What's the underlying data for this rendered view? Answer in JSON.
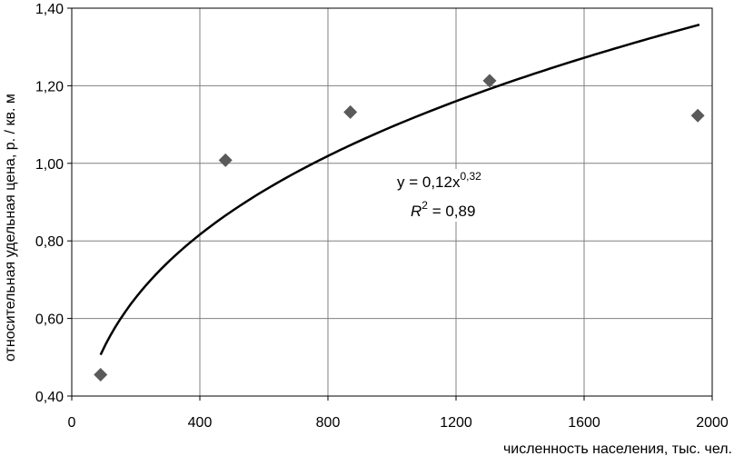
{
  "chart_data": {
    "type": "scatter",
    "title": "",
    "xlabel": "численность населения, тыс. чел.",
    "ylabel": "относительная удельная цена, р. / кв. м",
    "xlim": [
      0,
      2000
    ],
    "ylim": [
      0.4,
      1.4
    ],
    "x_ticks": [
      0,
      400,
      800,
      1200,
      1600,
      2000
    ],
    "x_tick_labels": [
      "0",
      "400",
      "800",
      "1200",
      "1600",
      "2000"
    ],
    "y_ticks": [
      0.4,
      0.6,
      0.8,
      1.0,
      1.2,
      1.4
    ],
    "y_tick_labels": [
      "0,40",
      "0,60",
      "0,80",
      "1,00",
      "1,20",
      "1,40"
    ],
    "grid": true,
    "points": [
      {
        "x": 90,
        "y": 0.455
      },
      {
        "x": 480,
        "y": 1.008
      },
      {
        "x": 870,
        "y": 1.132
      },
      {
        "x": 1305,
        "y": 1.213
      },
      {
        "x": 1955,
        "y": 1.123
      }
    ],
    "trendline": {
      "type": "power",
      "coefficient": 0.12,
      "exponent": 0.32,
      "x_range": [
        90,
        1960
      ],
      "equation_prefix": "y = 0,12x",
      "equation_exponent": "0,32",
      "r2_prefix": "R",
      "r2_exponent": "2",
      "r2_value": " = 0,89"
    },
    "colors": {
      "marker": "#5a5a5a",
      "trendline": "#000000",
      "grid": "#808080"
    }
  }
}
